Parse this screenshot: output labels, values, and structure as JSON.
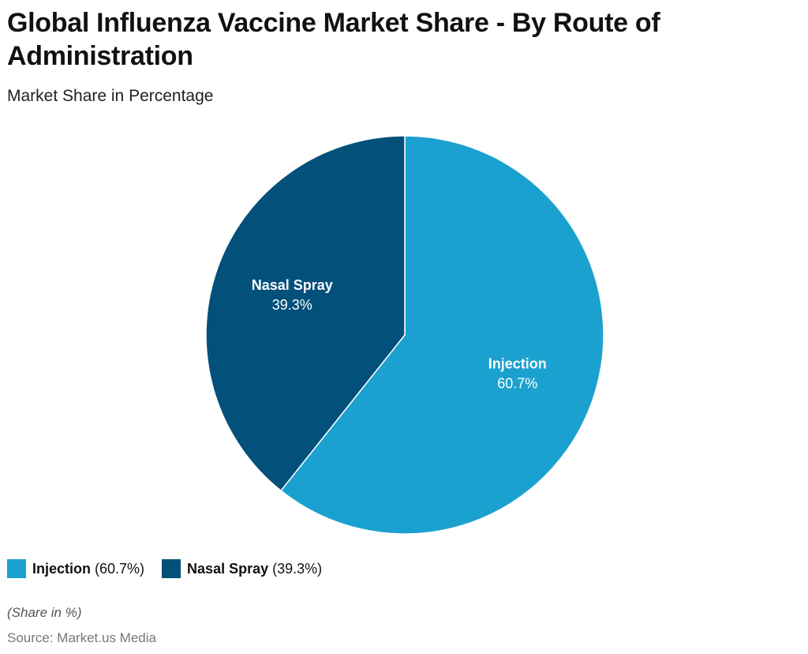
{
  "chart_data": {
    "type": "pie",
    "title": "Global Influenza Vaccine Market Share - By Route of Administration",
    "subtitle": "Market Share in Percentage",
    "categories": [
      "Injection",
      "Nasal Spray"
    ],
    "values": [
      60.7,
      39.3
    ],
    "value_labels": [
      "60.7%",
      "39.3%"
    ],
    "legend_value_labels": [
      "(60.7%)",
      "(39.3%)"
    ],
    "colors": [
      "#1ba1cf",
      "#03507a"
    ],
    "note": "(Share in %)",
    "source": "Source: Market.us Media"
  }
}
